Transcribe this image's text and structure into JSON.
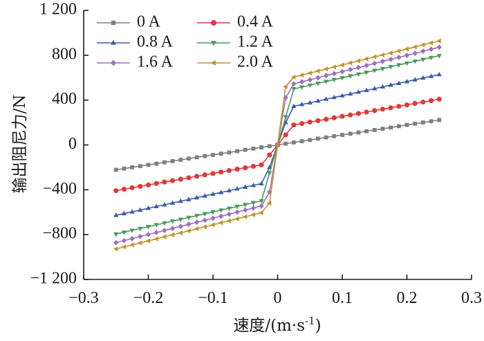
{
  "chart_data": {
    "type": "line",
    "title": "",
    "xlabel": "速度/(m·s⁻¹)",
    "xlabel_parts": {
      "main": "速度/(m·s",
      "sup": "-1",
      "close": ")"
    },
    "ylabel": "输出阻尼力/N",
    "xlim": [
      -0.3,
      0.3
    ],
    "ylim": [
      -1200,
      1200
    ],
    "xticks": [
      -0.3,
      -0.2,
      -0.1,
      0,
      0.1,
      0.2,
      0.3
    ],
    "xtick_labels": [
      "−0.3",
      "−0.2",
      "−0.1",
      "0",
      "0.1",
      "0.2",
      "0.3"
    ],
    "yticks": [
      1200,
      800,
      400,
      0,
      -400,
      -800,
      -1200
    ],
    "ytick_labels": [
      "1 200",
      "800",
      "400",
      "0",
      "−400",
      "−800",
      "−1 200"
    ],
    "grid": false,
    "legend_position": "top-left",
    "x": [
      -0.25,
      -0.2375,
      -0.225,
      -0.2125,
      -0.2,
      -0.1875,
      -0.175,
      -0.1625,
      -0.15,
      -0.1375,
      -0.125,
      -0.1125,
      -0.1,
      -0.0875,
      -0.075,
      -0.0625,
      -0.05,
      -0.0375,
      -0.025,
      -0.0125,
      0,
      0.0125,
      0.025,
      0.0375,
      0.05,
      0.0625,
      0.075,
      0.0875,
      0.1,
      0.1125,
      0.125,
      0.1375,
      0.15,
      0.1625,
      0.175,
      0.1875,
      0.2,
      0.2125,
      0.225,
      0.2375,
      0.25
    ],
    "series": [
      {
        "name": "0 A",
        "color": "#7f7f7f",
        "marker": "square",
        "values": [
          -222,
          -211,
          -200,
          -189,
          -178,
          -167,
          -155,
          -144,
          -133,
          -122,
          -111,
          -100,
          -89,
          -78,
          -67,
          -56,
          -44,
          -33,
          -22,
          -11,
          0,
          11,
          22,
          33,
          44,
          56,
          67,
          78,
          89,
          100,
          111,
          122,
          133,
          144,
          155,
          167,
          178,
          189,
          200,
          211,
          222
        ]
      },
      {
        "name": "0.4 A",
        "color": "#e0393b",
        "marker": "circle",
        "values": [
          -408,
          -395,
          -382,
          -370,
          -357,
          -344,
          -331,
          -319,
          -306,
          -293,
          -280,
          -267,
          -255,
          -242,
          -229,
          -216,
          -204,
          -191,
          -178,
          -90,
          0,
          90,
          178,
          191,
          204,
          216,
          229,
          242,
          255,
          267,
          280,
          293,
          306,
          319,
          331,
          344,
          357,
          370,
          382,
          395,
          408
        ]
      },
      {
        "name": "0.8 A",
        "color": "#3d5ba9",
        "marker": "triangle-up",
        "values": [
          -628,
          -612,
          -597,
          -581,
          -565,
          -549,
          -534,
          -518,
          -502,
          -487,
          -471,
          -455,
          -439,
          -424,
          -408,
          -392,
          -376,
          -361,
          -345,
          -200,
          0,
          200,
          345,
          361,
          376,
          392,
          408,
          424,
          439,
          455,
          471,
          487,
          502,
          518,
          534,
          549,
          565,
          581,
          597,
          612,
          628
        ]
      },
      {
        "name": "1.2 A",
        "color": "#4a9a5f",
        "marker": "triangle-down",
        "values": [
          -795,
          -779,
          -762,
          -746,
          -729,
          -713,
          -697,
          -680,
          -664,
          -647,
          -631,
          -615,
          -598,
          -582,
          -566,
          -549,
          -533,
          -516,
          -500,
          -250,
          0,
          250,
          500,
          516,
          533,
          549,
          566,
          582,
          598,
          615,
          631,
          647,
          664,
          680,
          697,
          713,
          729,
          746,
          762,
          779,
          795
        ]
      },
      {
        "name": "1.6 A",
        "color": "#9b6fc4",
        "marker": "diamond",
        "values": [
          -872,
          -854,
          -836,
          -817,
          -799,
          -781,
          -763,
          -745,
          -727,
          -708,
          -690,
          -672,
          -654,
          -636,
          -618,
          -599,
          -581,
          -563,
          -545,
          -420,
          0,
          420,
          545,
          563,
          581,
          599,
          618,
          636,
          654,
          672,
          690,
          708,
          727,
          745,
          763,
          781,
          799,
          817,
          836,
          854,
          872
        ]
      },
      {
        "name": "2.0 A",
        "color": "#c8902a",
        "marker": "triangle-left",
        "values": [
          -928,
          -910,
          -892,
          -874,
          -856,
          -838,
          -820,
          -802,
          -785,
          -767,
          -749,
          -731,
          -713,
          -695,
          -677,
          -659,
          -641,
          -623,
          -605,
          -520,
          0,
          520,
          605,
          623,
          641,
          659,
          677,
          695,
          713,
          731,
          749,
          767,
          785,
          802,
          820,
          838,
          856,
          874,
          892,
          910,
          928
        ]
      }
    ]
  }
}
